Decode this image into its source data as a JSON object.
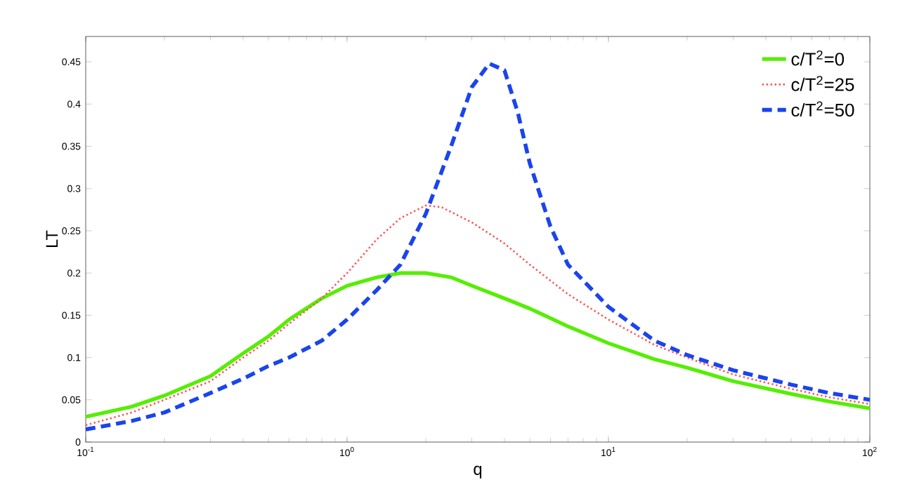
{
  "chart_data": {
    "type": "line",
    "xlabel": "q",
    "ylabel": "LT",
    "log": "x",
    "xlim": [
      0.1,
      100
    ],
    "ylim": [
      0,
      0.48
    ],
    "xticks": [
      {
        "value": 0.1,
        "label": "10$^{-1}$"
      },
      {
        "value": 1,
        "label": "10$^{0}$"
      },
      {
        "value": 10,
        "label": "10$^{1}$"
      },
      {
        "value": 100,
        "label": "10$^{2}$"
      }
    ],
    "yticks": [
      0,
      0.05,
      0.1,
      0.15,
      0.2,
      0.25,
      0.3,
      0.35,
      0.4,
      0.45
    ],
    "grid": false,
    "legend": "top right",
    "marker": "none",
    "series": [
      {
        "name": "c/T$^{2}$=0",
        "color": "#55ee00",
        "line_style": "solid",
        "x": [
          0.1,
          0.15,
          0.2,
          0.3,
          0.4,
          0.5,
          0.6,
          0.8,
          1.0,
          1.3,
          1.6,
          2,
          2.5,
          3,
          4,
          5,
          7,
          10,
          15,
          20,
          30,
          50,
          70,
          100
        ],
        "values": [
          0.03,
          0.042,
          0.055,
          0.078,
          0.105,
          0.125,
          0.145,
          0.17,
          0.185,
          0.195,
          0.2,
          0.2,
          0.195,
          0.185,
          0.17,
          0.158,
          0.137,
          0.117,
          0.098,
          0.088,
          0.072,
          0.057,
          0.048,
          0.04
        ]
      },
      {
        "name": "c/T$^{2}$=25",
        "color": "#ff5555",
        "line_style": "dotted",
        "x": [
          0.1,
          0.15,
          0.2,
          0.3,
          0.4,
          0.5,
          0.6,
          0.8,
          1.0,
          1.3,
          1.6,
          2,
          2.3,
          3,
          4,
          5,
          7,
          10,
          15,
          20,
          30,
          50,
          70,
          100
        ],
        "values": [
          0.02,
          0.035,
          0.05,
          0.072,
          0.1,
          0.12,
          0.14,
          0.17,
          0.2,
          0.24,
          0.265,
          0.28,
          0.278,
          0.26,
          0.235,
          0.21,
          0.175,
          0.145,
          0.115,
          0.1,
          0.08,
          0.063,
          0.053,
          0.045
        ]
      },
      {
        "name": "c/T$^{2}$=50",
        "color": "#1a44ee",
        "line_style": "dashed",
        "x": [
          0.1,
          0.15,
          0.2,
          0.3,
          0.4,
          0.5,
          0.6,
          0.8,
          1.0,
          1.3,
          1.6,
          2,
          2.5,
          3,
          3.5,
          4,
          4.5,
          5,
          6,
          7,
          10,
          15,
          20,
          30,
          50,
          70,
          100
        ],
        "values": [
          0.015,
          0.025,
          0.035,
          0.058,
          0.075,
          0.09,
          0.1,
          0.12,
          0.145,
          0.18,
          0.21,
          0.27,
          0.35,
          0.42,
          0.448,
          0.44,
          0.39,
          0.33,
          0.255,
          0.21,
          0.16,
          0.12,
          0.103,
          0.085,
          0.068,
          0.058,
          0.05
        ]
      }
    ]
  }
}
